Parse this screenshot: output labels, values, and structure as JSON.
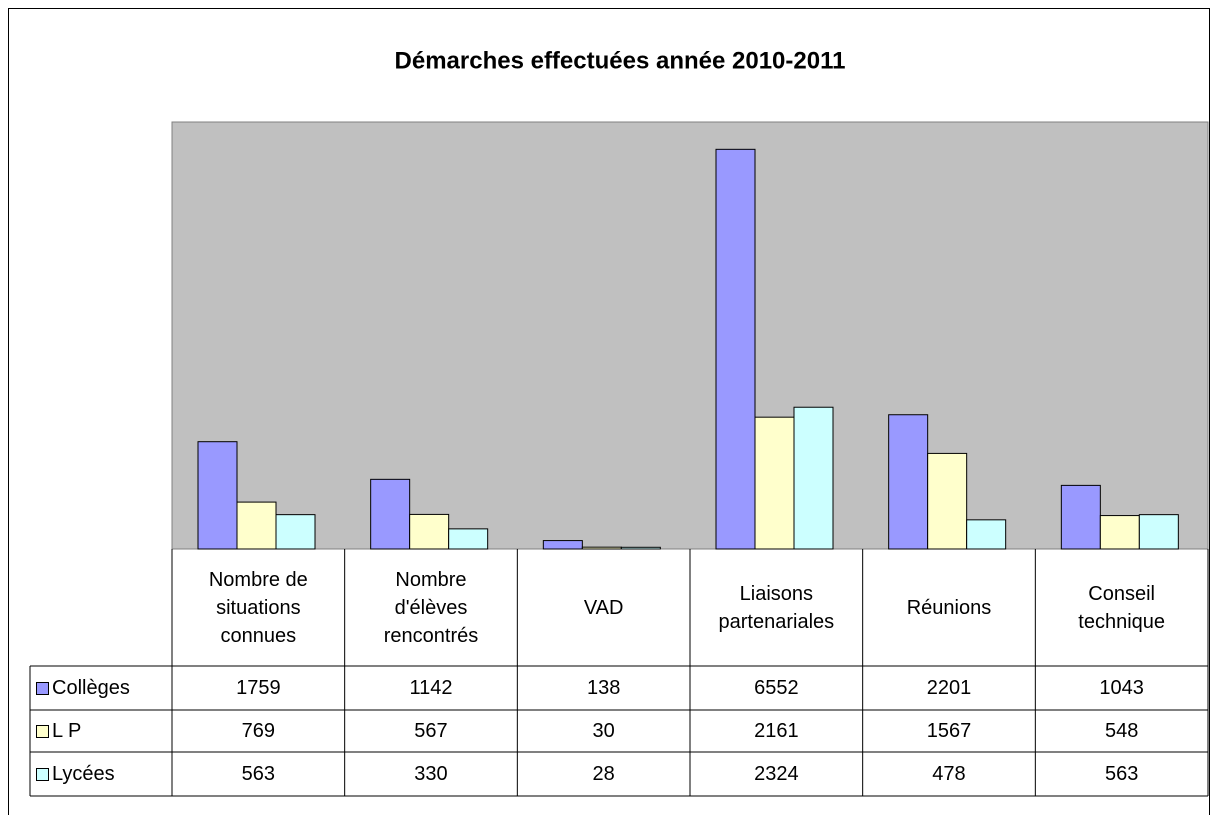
{
  "chart_data": {
    "type": "bar",
    "title": "Démarches effectuées année 2010-2011",
    "categories": [
      "Nombre de situations connues",
      "Nombre d'élèves rencontrés",
      "VAD",
      "Liaisons partenariales",
      "Réunions",
      "Conseil technique"
    ],
    "series": [
      {
        "name": "Collèges",
        "color": "#9999ff",
        "values": [
          1759,
          1142,
          138,
          6552,
          2201,
          1043
        ]
      },
      {
        "name": "L P",
        "color": "#ffffcc",
        "values": [
          769,
          567,
          30,
          2161,
          1567,
          548
        ]
      },
      {
        "name": "Lycées",
        "color": "#ccffff",
        "values": [
          563,
          330,
          28,
          2324,
          478,
          563
        ]
      }
    ],
    "ylim": [
      0,
      7000
    ],
    "plot_background": "#c0c0c0"
  }
}
